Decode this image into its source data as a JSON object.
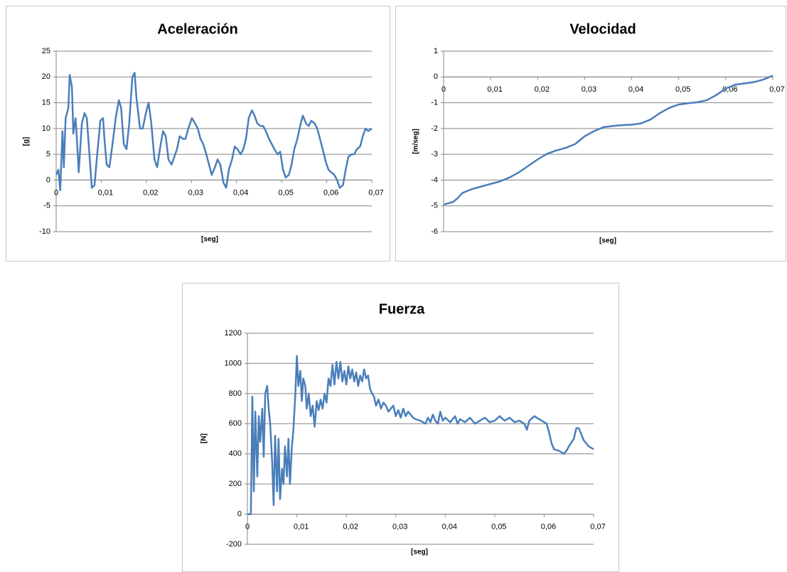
{
  "chart_data": [
    {
      "type": "line",
      "title": "Aceleración",
      "xlabel": "[seg]",
      "ylabel": "[g]",
      "color": "#4a7ebb",
      "grid": true,
      "xlim": [
        0,
        0.07
      ],
      "ylim": [
        -10,
        25
      ],
      "xticks": [
        0,
        {
          "value": 0.01,
          "label": "0,01"
        },
        {
          "value": 0.02,
          "label": "0,02"
        },
        {
          "value": 0.03,
          "label": "0,03"
        },
        {
          "value": 0.04,
          "label": "0,04"
        },
        {
          "value": 0.05,
          "label": "0,05"
        },
        {
          "value": 0.06,
          "label": "0,06"
        },
        {
          "value": 0.07,
          "label": "0,07"
        }
      ],
      "yticks": [
        -10,
        -5,
        0,
        5,
        10,
        15,
        20,
        25
      ],
      "x": [
        0,
        0.0005,
        0.0009,
        0.0014,
        0.0017,
        0.0021,
        0.0027,
        0.003,
        0.0035,
        0.0038,
        0.0043,
        0.0046,
        0.005,
        0.0057,
        0.0063,
        0.0068,
        0.0073,
        0.0079,
        0.0085,
        0.0091,
        0.0098,
        0.0104,
        0.0107,
        0.0112,
        0.0118,
        0.0125,
        0.0132,
        0.0139,
        0.0144,
        0.015,
        0.0156,
        0.0162,
        0.0169,
        0.0174,
        0.0178,
        0.0186,
        0.0192,
        0.0199,
        0.0205,
        0.0211,
        0.0218,
        0.0224,
        0.023,
        0.0237,
        0.0243,
        0.0249,
        0.0256,
        0.0262,
        0.0268,
        0.0274,
        0.0281,
        0.0287,
        0.0293,
        0.0301,
        0.0308,
        0.0314,
        0.032,
        0.0326,
        0.0333,
        0.0339,
        0.0345,
        0.0352,
        0.0358,
        0.0364,
        0.0371,
        0.0377,
        0.0383,
        0.039,
        0.0396,
        0.0402,
        0.0409,
        0.0415,
        0.0421,
        0.0427,
        0.0434,
        0.044,
        0.0446,
        0.0453,
        0.0459,
        0.0465,
        0.0472,
        0.0478,
        0.0484,
        0.0491,
        0.0497,
        0.0503,
        0.0509,
        0.0516,
        0.0522,
        0.0528,
        0.0535,
        0.0541,
        0.0547,
        0.0554,
        0.056,
        0.0566,
        0.0573,
        0.0579,
        0.0585,
        0.0591,
        0.0598,
        0.0604,
        0.061,
        0.0617,
        0.0623,
        0.0629,
        0.0636,
        0.0642,
        0.0648,
        0.0655,
        0.0661,
        0.0667,
        0.0674,
        0.068,
        0.0686,
        0.0692,
        0.07
      ],
      "values": [
        1,
        2,
        -2,
        9.5,
        2.5,
        12,
        14,
        20.4,
        18,
        9,
        12,
        8,
        1.5,
        11,
        13,
        12,
        6,
        -1.5,
        -1,
        5,
        11.5,
        12,
        8,
        3,
        2.5,
        7,
        12,
        15.5,
        14,
        7,
        6,
        11,
        20,
        20.8,
        16,
        10,
        10,
        13,
        15,
        11,
        4,
        2.5,
        6,
        9.5,
        8.5,
        4,
        3,
        4.5,
        6,
        8.5,
        8,
        8,
        10,
        12,
        11,
        10,
        8,
        7,
        5,
        3,
        1,
        2.5,
        4,
        3,
        -0.5,
        -1.5,
        2,
        4,
        6.5,
        6,
        5,
        6,
        8,
        12,
        13.5,
        12.5,
        11,
        10.5,
        10.5,
        9.5,
        8,
        7,
        6,
        5,
        5.5,
        2,
        0.5,
        1,
        3,
        6,
        8,
        10.5,
        12.5,
        11,
        10.5,
        11.5,
        11,
        10,
        8,
        6,
        3.5,
        2,
        1.5,
        1,
        0,
        -1.5,
        -1,
        2,
        4.5,
        5,
        5,
        6,
        6.5,
        8.5,
        10,
        9.5,
        10
      ]
    },
    {
      "type": "line",
      "title": "Velocidad",
      "xlabel": "[seg]",
      "ylabel": "[m/seg]",
      "color": "#4a7ebb",
      "grid": true,
      "xlim": [
        0,
        0.07
      ],
      "ylim": [
        -6,
        1
      ],
      "xticks": [
        0,
        {
          "value": 0.01,
          "label": "0,01"
        },
        {
          "value": 0.02,
          "label": "0,02"
        },
        {
          "value": 0.03,
          "label": "0,03"
        },
        {
          "value": 0.04,
          "label": "0,04"
        },
        {
          "value": 0.05,
          "label": "0,05"
        },
        {
          "value": 0.06,
          "label": "0,06"
        },
        {
          "value": 0.07,
          "label": "0,07"
        }
      ],
      "yticks": [
        -6,
        -5,
        -4,
        -3,
        -2,
        -1,
        0,
        1
      ],
      "x": [
        0,
        0.002,
        0.003,
        0.004,
        0.006,
        0.008,
        0.01,
        0.012,
        0.014,
        0.016,
        0.018,
        0.02,
        0.022,
        0.024,
        0.026,
        0.028,
        0.03,
        0.032,
        0.034,
        0.036,
        0.038,
        0.04,
        0.042,
        0.044,
        0.046,
        0.048,
        0.05,
        0.052,
        0.054,
        0.056,
        0.058,
        0.06,
        0.062,
        0.064,
        0.066,
        0.068,
        0.07
      ],
      "values": [
        -4.95,
        -4.85,
        -4.7,
        -4.5,
        -4.35,
        -4.25,
        -4.15,
        -4.05,
        -3.9,
        -3.7,
        -3.45,
        -3.2,
        -2.98,
        -2.85,
        -2.75,
        -2.6,
        -2.3,
        -2.1,
        -1.95,
        -1.9,
        -1.87,
        -1.85,
        -1.8,
        -1.65,
        -1.4,
        -1.2,
        -1.07,
        -1.02,
        -0.98,
        -0.9,
        -0.7,
        -0.45,
        -0.3,
        -0.25,
        -0.2,
        -0.1,
        0.05
      ]
    },
    {
      "type": "line",
      "title": "Fuerza",
      "xlabel": "[seg]",
      "ylabel": "[N]",
      "color": "#4a7ebb",
      "grid": true,
      "xlim": [
        0,
        0.07
      ],
      "ylim": [
        -200,
        1200
      ],
      "xticks": [
        0,
        {
          "value": 0.01,
          "label": "0,01"
        },
        {
          "value": 0.02,
          "label": "0,02"
        },
        {
          "value": 0.03,
          "label": "0,03"
        },
        {
          "value": 0.04,
          "label": "0,04"
        },
        {
          "value": 0.05,
          "label": "0,05"
        },
        {
          "value": 0.06,
          "label": "0,06"
        },
        {
          "value": 0.07,
          "label": "0,07"
        }
      ],
      "yticks": [
        -200,
        0,
        200,
        400,
        600,
        800,
        1000,
        1200
      ],
      "x": [
        0,
        0.0007,
        0.001,
        0.0013,
        0.0016,
        0.002,
        0.0023,
        0.0026,
        0.003,
        0.0033,
        0.0036,
        0.004,
        0.0043,
        0.0046,
        0.005,
        0.0053,
        0.0056,
        0.006,
        0.0063,
        0.0066,
        0.007,
        0.0073,
        0.0076,
        0.008,
        0.0083,
        0.0086,
        0.009,
        0.0093,
        0.0097,
        0.01,
        0.0103,
        0.0107,
        0.011,
        0.0113,
        0.0117,
        0.012,
        0.0124,
        0.0128,
        0.0132,
        0.0136,
        0.014,
        0.0144,
        0.0148,
        0.0152,
        0.0156,
        0.016,
        0.0164,
        0.0168,
        0.0172,
        0.0176,
        0.018,
        0.0184,
        0.0188,
        0.0192,
        0.0196,
        0.02,
        0.0204,
        0.0208,
        0.0212,
        0.0216,
        0.022,
        0.0224,
        0.0228,
        0.0232,
        0.0236,
        0.024,
        0.0244,
        0.0248,
        0.0252,
        0.0256,
        0.026,
        0.0265,
        0.027,
        0.0275,
        0.028,
        0.0285,
        0.029,
        0.0295,
        0.03,
        0.0305,
        0.031,
        0.0315,
        0.032,
        0.0325,
        0.033,
        0.0335,
        0.034,
        0.035,
        0.036,
        0.0365,
        0.037,
        0.0375,
        0.038,
        0.0385,
        0.039,
        0.0395,
        0.04,
        0.041,
        0.042,
        0.0425,
        0.043,
        0.044,
        0.045,
        0.046,
        0.047,
        0.048,
        0.049,
        0.05,
        0.051,
        0.052,
        0.053,
        0.054,
        0.055,
        0.056,
        0.0565,
        0.057,
        0.058,
        0.059,
        0.06,
        0.0605,
        0.061,
        0.0615,
        0.062,
        0.063,
        0.064,
        0.0645,
        0.065,
        0.066,
        0.0665,
        0.067,
        0.0675,
        0.068,
        0.069,
        0.07
      ],
      "values": [
        0,
        0,
        780,
        150,
        680,
        250,
        650,
        480,
        700,
        380,
        800,
        850,
        700,
        600,
        350,
        60,
        520,
        150,
        500,
        100,
        300,
        200,
        450,
        250,
        500,
        200,
        450,
        560,
        800,
        1050,
        850,
        950,
        750,
        900,
        850,
        700,
        800,
        650,
        720,
        580,
        750,
        690,
        760,
        700,
        800,
        740,
        900,
        850,
        990,
        860,
        1010,
        900,
        1010,
        880,
        950,
        860,
        980,
        900,
        960,
        880,
        940,
        850,
        920,
        880,
        960,
        900,
        920,
        830,
        800,
        780,
        720,
        760,
        700,
        740,
        720,
        680,
        700,
        720,
        650,
        690,
        640,
        700,
        650,
        680,
        660,
        640,
        630,
        620,
        600,
        640,
        610,
        660,
        620,
        600,
        680,
        620,
        640,
        610,
        650,
        600,
        630,
        610,
        640,
        600,
        620,
        640,
        610,
        620,
        650,
        620,
        640,
        610,
        620,
        600,
        560,
        620,
        650,
        630,
        610,
        600,
        540,
        470,
        430,
        420,
        400,
        420,
        450,
        500,
        570,
        570,
        530,
        490,
        450,
        430
      ]
    }
  ]
}
